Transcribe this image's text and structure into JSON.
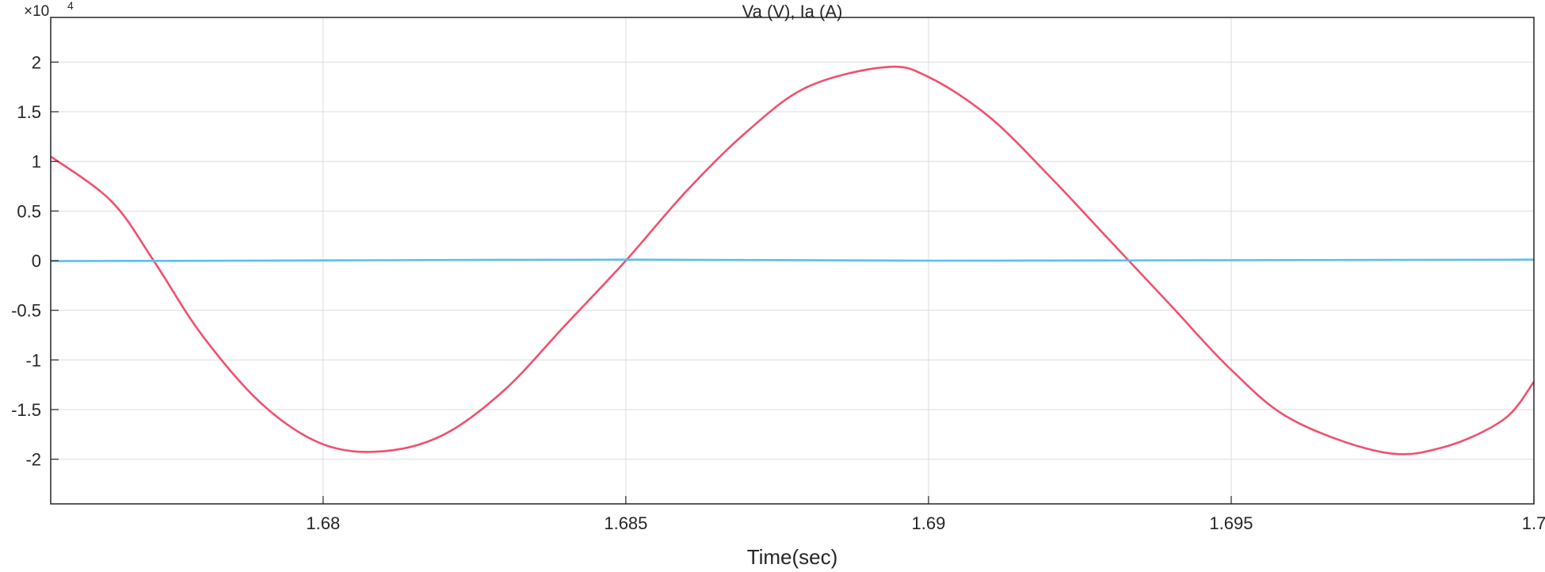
{
  "chart_data": {
    "type": "line",
    "title": "Va (V), Ia (A)",
    "xlabel": "Time(sec)",
    "ylabel": "",
    "xlim": [
      1.6755,
      1.7
    ],
    "ylim": [
      -2.45,
      2.45
    ],
    "y_multiplier_label": "×10",
    "y_multiplier_exponent": "4",
    "x_ticks": [
      1.68,
      1.685,
      1.69,
      1.695,
      1.7
    ],
    "x_tick_labels": [
      "1.68",
      "1.685",
      "1.69",
      "1.695",
      "1.7"
    ],
    "y_ticks": [
      -2,
      -1.5,
      -1,
      -0.5,
      0,
      0.5,
      1,
      1.5,
      2
    ],
    "y_tick_labels": [
      "-2",
      "-1.5",
      "-1",
      "-0.5",
      "0",
      "0.5",
      "1",
      "1.5",
      "2"
    ],
    "grid": true,
    "series": [
      {
        "color": "#f0506e",
        "x": [
          1.6755,
          1.6765,
          1.6772,
          1.678,
          1.679,
          1.68,
          1.681,
          1.682,
          1.683,
          1.684,
          1.685,
          1.686,
          1.687,
          1.688,
          1.6893,
          1.69,
          1.691,
          1.692,
          1.693,
          1.694,
          1.695,
          1.696,
          1.6975,
          1.6985,
          1.6995,
          1.7
        ],
        "y": [
          1.05,
          0.6,
          0.0,
          -0.75,
          -1.45,
          -1.85,
          -1.92,
          -1.75,
          -1.3,
          -0.65,
          0.0,
          0.7,
          1.3,
          1.75,
          1.95,
          1.85,
          1.45,
          0.85,
          0.2,
          -0.45,
          -1.1,
          -1.6,
          -1.93,
          -1.88,
          -1.6,
          -1.22
        ]
      },
      {
        "color": "#5bc0eb",
        "x": [
          1.6755,
          1.68,
          1.685,
          1.69,
          1.695,
          1.7
        ],
        "y": [
          -0.005,
          0.002,
          0.01,
          0.0,
          0.005,
          0.01
        ]
      }
    ]
  }
}
